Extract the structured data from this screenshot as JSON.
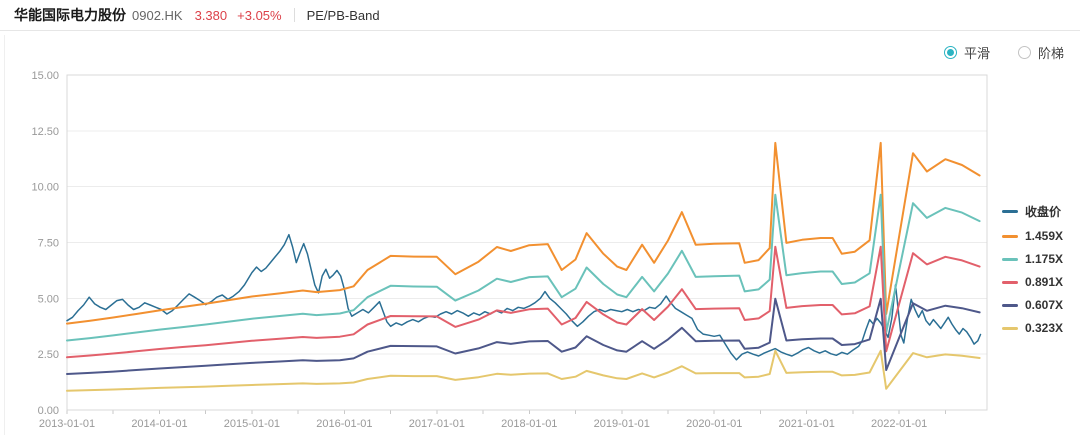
{
  "header": {
    "stock_name": "华能国际电力股份",
    "ticker": "0902.HK",
    "price": "3.380",
    "change_percent": "+3.05%",
    "chart_type": "PE/PB-Band"
  },
  "controls": {
    "options": [
      {
        "label": "平滑",
        "selected": true
      },
      {
        "label": "阶梯",
        "selected": false
      }
    ]
  },
  "colors": {
    "price_up": "#dc4149",
    "radio_active": "#2ab3c2",
    "axis_text": "#999999",
    "grid_line": "#ececec",
    "plot_border": "#d9d9d9"
  },
  "chart_data": {
    "type": "line",
    "grid": true,
    "legend_position": "right",
    "x_axis": {
      "range": [
        2013,
        2022.95
      ],
      "tick_years": [
        2013,
        2014,
        2015,
        2016,
        2017,
        2018,
        2019,
        2020,
        2021,
        2022
      ],
      "tick_labels": [
        "2013-01-01",
        "2014-01-01",
        "2015-01-01",
        "2016-01-01",
        "2017-01-01",
        "2018-01-01",
        "2019-01-01",
        "2020-01-01",
        "2021-01-01",
        "2022-01-01"
      ],
      "minor_tick_step_years": 0.5
    },
    "y_axis": {
      "range": [
        0,
        15
      ],
      "tick_values": [
        0,
        2.5,
        5,
        7.5,
        10,
        12.5,
        15
      ],
      "tick_labels": [
        "0.00",
        "2.50",
        "5.00",
        "7.50",
        "10.00",
        "12.50",
        "15.00"
      ]
    },
    "band_book_value": {
      "t": [
        2013.0,
        2013.25,
        2013.5,
        2013.75,
        2014.0,
        2014.25,
        2014.5,
        2014.75,
        2015.0,
        2015.3,
        2015.55,
        2015.7,
        2015.95,
        2016.1,
        2016.25,
        2016.5,
        2016.75,
        2017.0,
        2017.2,
        2017.45,
        2017.65,
        2017.8,
        2018.0,
        2018.2,
        2018.35,
        2018.5,
        2018.62,
        2018.8,
        2018.95,
        2019.05,
        2019.22,
        2019.35,
        2019.5,
        2019.65,
        2019.8,
        2020.0,
        2020.27,
        2020.33,
        2020.48,
        2020.6,
        2020.66,
        2020.78,
        2020.95,
        2021.15,
        2021.28,
        2021.38,
        2021.52,
        2021.68,
        2021.8,
        2021.86,
        2022.15,
        2022.3,
        2022.5,
        2022.68,
        2022.87
      ],
      "v": [
        2.65,
        2.74,
        2.84,
        2.95,
        3.06,
        3.16,
        3.26,
        3.37,
        3.48,
        3.58,
        3.67,
        3.62,
        3.68,
        3.8,
        4.3,
        4.73,
        4.71,
        4.7,
        4.17,
        4.55,
        5.0,
        4.88,
        5.06,
        5.09,
        4.3,
        4.62,
        5.43,
        4.8,
        4.4,
        4.3,
        5.07,
        4.52,
        5.2,
        6.07,
        5.07,
        5.1,
        5.12,
        4.52,
        4.6,
        4.97,
        8.2,
        5.13,
        5.22,
        5.28,
        5.28,
        4.8,
        4.86,
        5.21,
        8.2,
        2.95,
        7.88,
        7.32,
        7.7,
        7.52,
        7.2
      ]
    },
    "series": [
      {
        "name": "收盘价",
        "kind": "close",
        "color": "#2b6f94",
        "points": [
          [
            2013.0,
            4.0
          ],
          [
            2013.06,
            4.15
          ],
          [
            2013.12,
            4.45
          ],
          [
            2013.18,
            4.7
          ],
          [
            2013.24,
            5.05
          ],
          [
            2013.3,
            4.75
          ],
          [
            2013.36,
            4.6
          ],
          [
            2013.42,
            4.5
          ],
          [
            2013.48,
            4.7
          ],
          [
            2013.54,
            4.9
          ],
          [
            2013.6,
            4.95
          ],
          [
            2013.66,
            4.7
          ],
          [
            2013.72,
            4.5
          ],
          [
            2013.78,
            4.6
          ],
          [
            2013.84,
            4.8
          ],
          [
            2013.9,
            4.7
          ],
          [
            2013.96,
            4.6
          ],
          [
            2014.02,
            4.5
          ],
          [
            2014.08,
            4.3
          ],
          [
            2014.14,
            4.45
          ],
          [
            2014.2,
            4.7
          ],
          [
            2014.26,
            4.95
          ],
          [
            2014.32,
            5.2
          ],
          [
            2014.38,
            5.05
          ],
          [
            2014.44,
            4.9
          ],
          [
            2014.5,
            4.72
          ],
          [
            2014.56,
            4.85
          ],
          [
            2014.62,
            5.05
          ],
          [
            2014.68,
            5.15
          ],
          [
            2014.74,
            4.95
          ],
          [
            2014.8,
            5.1
          ],
          [
            2014.86,
            5.3
          ],
          [
            2014.92,
            5.6
          ],
          [
            2015.0,
            6.15
          ],
          [
            2015.05,
            6.4
          ],
          [
            2015.1,
            6.2
          ],
          [
            2015.15,
            6.35
          ],
          [
            2015.2,
            6.6
          ],
          [
            2015.25,
            6.85
          ],
          [
            2015.3,
            7.1
          ],
          [
            2015.35,
            7.4
          ],
          [
            2015.4,
            7.85
          ],
          [
            2015.44,
            7.3
          ],
          [
            2015.48,
            6.6
          ],
          [
            2015.52,
            7.05
          ],
          [
            2015.56,
            7.45
          ],
          [
            2015.6,
            7.0
          ],
          [
            2015.64,
            6.3
          ],
          [
            2015.68,
            5.6
          ],
          [
            2015.72,
            5.25
          ],
          [
            2015.76,
            6.0
          ],
          [
            2015.8,
            6.3
          ],
          [
            2015.84,
            5.9
          ],
          [
            2015.88,
            6.05
          ],
          [
            2015.92,
            6.25
          ],
          [
            2015.96,
            6.0
          ],
          [
            2016.0,
            5.4
          ],
          [
            2016.04,
            4.55
          ],
          [
            2016.08,
            4.2
          ],
          [
            2016.14,
            4.35
          ],
          [
            2016.2,
            4.5
          ],
          [
            2016.26,
            4.35
          ],
          [
            2016.32,
            4.6
          ],
          [
            2016.38,
            4.85
          ],
          [
            2016.42,
            4.4
          ],
          [
            2016.46,
            3.95
          ],
          [
            2016.5,
            3.75
          ],
          [
            2016.56,
            3.9
          ],
          [
            2016.62,
            3.8
          ],
          [
            2016.68,
            3.95
          ],
          [
            2016.74,
            4.05
          ],
          [
            2016.8,
            3.95
          ],
          [
            2016.86,
            4.1
          ],
          [
            2016.92,
            4.2
          ],
          [
            2016.98,
            4.15
          ],
          [
            2017.04,
            4.3
          ],
          [
            2017.1,
            4.4
          ],
          [
            2017.16,
            4.3
          ],
          [
            2017.22,
            4.45
          ],
          [
            2017.28,
            4.35
          ],
          [
            2017.34,
            4.2
          ],
          [
            2017.4,
            4.35
          ],
          [
            2017.46,
            4.25
          ],
          [
            2017.52,
            4.4
          ],
          [
            2017.58,
            4.3
          ],
          [
            2017.64,
            4.45
          ],
          [
            2017.7,
            4.35
          ],
          [
            2017.76,
            4.55
          ],
          [
            2017.82,
            4.45
          ],
          [
            2017.88,
            4.6
          ],
          [
            2017.94,
            4.55
          ],
          [
            2018.0,
            4.65
          ],
          [
            2018.06,
            4.8
          ],
          [
            2018.12,
            5.0
          ],
          [
            2018.17,
            5.3
          ],
          [
            2018.22,
            5.0
          ],
          [
            2018.28,
            4.8
          ],
          [
            2018.34,
            4.55
          ],
          [
            2018.4,
            4.3
          ],
          [
            2018.46,
            4.0
          ],
          [
            2018.52,
            3.75
          ],
          [
            2018.58,
            3.95
          ],
          [
            2018.64,
            4.2
          ],
          [
            2018.7,
            4.4
          ],
          [
            2018.76,
            4.5
          ],
          [
            2018.82,
            4.4
          ],
          [
            2018.88,
            4.5
          ],
          [
            2018.94,
            4.45
          ],
          [
            2019.0,
            4.4
          ],
          [
            2019.06,
            4.5
          ],
          [
            2019.12,
            4.4
          ],
          [
            2019.18,
            4.5
          ],
          [
            2019.24,
            4.45
          ],
          [
            2019.3,
            4.6
          ],
          [
            2019.36,
            4.55
          ],
          [
            2019.42,
            4.75
          ],
          [
            2019.48,
            5.1
          ],
          [
            2019.52,
            4.85
          ],
          [
            2019.58,
            4.55
          ],
          [
            2019.64,
            4.4
          ],
          [
            2019.7,
            4.25
          ],
          [
            2019.76,
            4.1
          ],
          [
            2019.82,
            3.6
          ],
          [
            2019.88,
            3.4
          ],
          [
            2019.94,
            3.35
          ],
          [
            2020.0,
            3.3
          ],
          [
            2020.06,
            3.35
          ],
          [
            2020.12,
            2.95
          ],
          [
            2020.18,
            2.55
          ],
          [
            2020.24,
            2.25
          ],
          [
            2020.3,
            2.5
          ],
          [
            2020.36,
            2.6
          ],
          [
            2020.42,
            2.5
          ],
          [
            2020.48,
            2.42
          ],
          [
            2020.54,
            2.55
          ],
          [
            2020.6,
            2.65
          ],
          [
            2020.66,
            2.75
          ],
          [
            2020.72,
            2.6
          ],
          [
            2020.78,
            2.5
          ],
          [
            2020.84,
            2.42
          ],
          [
            2020.9,
            2.55
          ],
          [
            2020.96,
            2.7
          ],
          [
            2021.02,
            2.8
          ],
          [
            2021.08,
            2.65
          ],
          [
            2021.14,
            2.55
          ],
          [
            2021.2,
            2.65
          ],
          [
            2021.26,
            2.52
          ],
          [
            2021.32,
            2.45
          ],
          [
            2021.38,
            2.58
          ],
          [
            2021.44,
            2.5
          ],
          [
            2021.5,
            2.68
          ],
          [
            2021.56,
            2.85
          ],
          [
            2021.6,
            3.1
          ],
          [
            2021.64,
            3.6
          ],
          [
            2021.68,
            4.05
          ],
          [
            2021.72,
            3.85
          ],
          [
            2021.76,
            4.1
          ],
          [
            2021.8,
            3.9
          ],
          [
            2021.84,
            3.6
          ],
          [
            2021.88,
            3.25
          ],
          [
            2021.92,
            4.1
          ],
          [
            2021.96,
            5.6
          ],
          [
            2021.99,
            4.5
          ],
          [
            2022.02,
            3.35
          ],
          [
            2022.05,
            3.0
          ],
          [
            2022.09,
            4.1
          ],
          [
            2022.13,
            4.95
          ],
          [
            2022.17,
            4.5
          ],
          [
            2022.21,
            4.15
          ],
          [
            2022.25,
            4.45
          ],
          [
            2022.29,
            4.0
          ],
          [
            2022.33,
            3.8
          ],
          [
            2022.37,
            4.05
          ],
          [
            2022.41,
            3.85
          ],
          [
            2022.45,
            3.65
          ],
          [
            2022.49,
            3.9
          ],
          [
            2022.53,
            4.15
          ],
          [
            2022.57,
            3.85
          ],
          [
            2022.61,
            3.6
          ],
          [
            2022.65,
            3.4
          ],
          [
            2022.69,
            3.65
          ],
          [
            2022.73,
            3.5
          ],
          [
            2022.77,
            3.25
          ],
          [
            2022.81,
            2.95
          ],
          [
            2022.85,
            3.1
          ],
          [
            2022.88,
            3.38
          ]
        ]
      },
      {
        "name": "1.459X",
        "kind": "band",
        "multiple": 1.459,
        "color": "#f29030"
      },
      {
        "name": "1.175X",
        "kind": "band",
        "multiple": 1.175,
        "color": "#6ac2ba"
      },
      {
        "name": "0.891X",
        "kind": "band",
        "multiple": 0.891,
        "color": "#e2606b"
      },
      {
        "name": "0.607X",
        "kind": "band",
        "multiple": 0.607,
        "color": "#4e588a"
      },
      {
        "name": "0.323X",
        "kind": "band",
        "multiple": 0.323,
        "color": "#e5c76d"
      }
    ]
  }
}
